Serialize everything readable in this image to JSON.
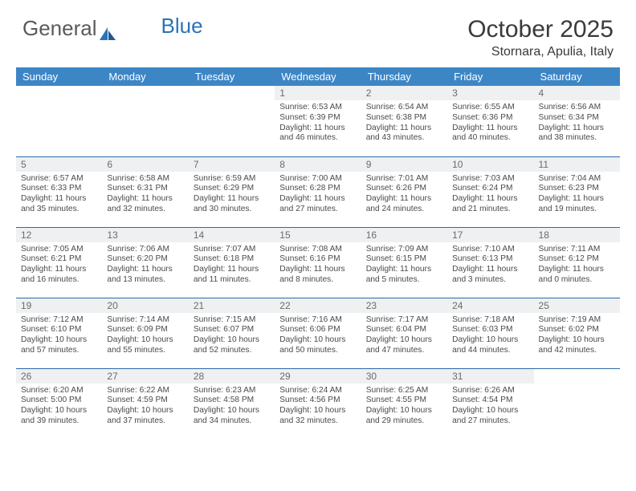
{
  "brand": {
    "part1": "General",
    "part2": "Blue"
  },
  "title": "October 2025",
  "location": "Stornara, Apulia, Italy",
  "colors": {
    "header_bg": "#3d86c6",
    "header_text": "#ffffff",
    "row_divider": "#2b6aa8",
    "daynum_bg": "#eef0f1",
    "daynum_text": "#6b6b6b",
    "body_text": "#4a4a4a",
    "logo_gray": "#5a5a5a",
    "logo_blue": "#2b73b8"
  },
  "weekdays": [
    "Sunday",
    "Monday",
    "Tuesday",
    "Wednesday",
    "Thursday",
    "Friday",
    "Saturday"
  ],
  "weeks": [
    [
      {
        "n": "",
        "sr": "",
        "ss": "",
        "dl": ""
      },
      {
        "n": "",
        "sr": "",
        "ss": "",
        "dl": ""
      },
      {
        "n": "",
        "sr": "",
        "ss": "",
        "dl": ""
      },
      {
        "n": "1",
        "sr": "Sunrise: 6:53 AM",
        "ss": "Sunset: 6:39 PM",
        "dl": "Daylight: 11 hours and 46 minutes."
      },
      {
        "n": "2",
        "sr": "Sunrise: 6:54 AM",
        "ss": "Sunset: 6:38 PM",
        "dl": "Daylight: 11 hours and 43 minutes."
      },
      {
        "n": "3",
        "sr": "Sunrise: 6:55 AM",
        "ss": "Sunset: 6:36 PM",
        "dl": "Daylight: 11 hours and 40 minutes."
      },
      {
        "n": "4",
        "sr": "Sunrise: 6:56 AM",
        "ss": "Sunset: 6:34 PM",
        "dl": "Daylight: 11 hours and 38 minutes."
      }
    ],
    [
      {
        "n": "5",
        "sr": "Sunrise: 6:57 AM",
        "ss": "Sunset: 6:33 PM",
        "dl": "Daylight: 11 hours and 35 minutes."
      },
      {
        "n": "6",
        "sr": "Sunrise: 6:58 AM",
        "ss": "Sunset: 6:31 PM",
        "dl": "Daylight: 11 hours and 32 minutes."
      },
      {
        "n": "7",
        "sr": "Sunrise: 6:59 AM",
        "ss": "Sunset: 6:29 PM",
        "dl": "Daylight: 11 hours and 30 minutes."
      },
      {
        "n": "8",
        "sr": "Sunrise: 7:00 AM",
        "ss": "Sunset: 6:28 PM",
        "dl": "Daylight: 11 hours and 27 minutes."
      },
      {
        "n": "9",
        "sr": "Sunrise: 7:01 AM",
        "ss": "Sunset: 6:26 PM",
        "dl": "Daylight: 11 hours and 24 minutes."
      },
      {
        "n": "10",
        "sr": "Sunrise: 7:03 AM",
        "ss": "Sunset: 6:24 PM",
        "dl": "Daylight: 11 hours and 21 minutes."
      },
      {
        "n": "11",
        "sr": "Sunrise: 7:04 AM",
        "ss": "Sunset: 6:23 PM",
        "dl": "Daylight: 11 hours and 19 minutes."
      }
    ],
    [
      {
        "n": "12",
        "sr": "Sunrise: 7:05 AM",
        "ss": "Sunset: 6:21 PM",
        "dl": "Daylight: 11 hours and 16 minutes."
      },
      {
        "n": "13",
        "sr": "Sunrise: 7:06 AM",
        "ss": "Sunset: 6:20 PM",
        "dl": "Daylight: 11 hours and 13 minutes."
      },
      {
        "n": "14",
        "sr": "Sunrise: 7:07 AM",
        "ss": "Sunset: 6:18 PM",
        "dl": "Daylight: 11 hours and 11 minutes."
      },
      {
        "n": "15",
        "sr": "Sunrise: 7:08 AM",
        "ss": "Sunset: 6:16 PM",
        "dl": "Daylight: 11 hours and 8 minutes."
      },
      {
        "n": "16",
        "sr": "Sunrise: 7:09 AM",
        "ss": "Sunset: 6:15 PM",
        "dl": "Daylight: 11 hours and 5 minutes."
      },
      {
        "n": "17",
        "sr": "Sunrise: 7:10 AM",
        "ss": "Sunset: 6:13 PM",
        "dl": "Daylight: 11 hours and 3 minutes."
      },
      {
        "n": "18",
        "sr": "Sunrise: 7:11 AM",
        "ss": "Sunset: 6:12 PM",
        "dl": "Daylight: 11 hours and 0 minutes."
      }
    ],
    [
      {
        "n": "19",
        "sr": "Sunrise: 7:12 AM",
        "ss": "Sunset: 6:10 PM",
        "dl": "Daylight: 10 hours and 57 minutes."
      },
      {
        "n": "20",
        "sr": "Sunrise: 7:14 AM",
        "ss": "Sunset: 6:09 PM",
        "dl": "Daylight: 10 hours and 55 minutes."
      },
      {
        "n": "21",
        "sr": "Sunrise: 7:15 AM",
        "ss": "Sunset: 6:07 PM",
        "dl": "Daylight: 10 hours and 52 minutes."
      },
      {
        "n": "22",
        "sr": "Sunrise: 7:16 AM",
        "ss": "Sunset: 6:06 PM",
        "dl": "Daylight: 10 hours and 50 minutes."
      },
      {
        "n": "23",
        "sr": "Sunrise: 7:17 AM",
        "ss": "Sunset: 6:04 PM",
        "dl": "Daylight: 10 hours and 47 minutes."
      },
      {
        "n": "24",
        "sr": "Sunrise: 7:18 AM",
        "ss": "Sunset: 6:03 PM",
        "dl": "Daylight: 10 hours and 44 minutes."
      },
      {
        "n": "25",
        "sr": "Sunrise: 7:19 AM",
        "ss": "Sunset: 6:02 PM",
        "dl": "Daylight: 10 hours and 42 minutes."
      }
    ],
    [
      {
        "n": "26",
        "sr": "Sunrise: 6:20 AM",
        "ss": "Sunset: 5:00 PM",
        "dl": "Daylight: 10 hours and 39 minutes."
      },
      {
        "n": "27",
        "sr": "Sunrise: 6:22 AM",
        "ss": "Sunset: 4:59 PM",
        "dl": "Daylight: 10 hours and 37 minutes."
      },
      {
        "n": "28",
        "sr": "Sunrise: 6:23 AM",
        "ss": "Sunset: 4:58 PM",
        "dl": "Daylight: 10 hours and 34 minutes."
      },
      {
        "n": "29",
        "sr": "Sunrise: 6:24 AM",
        "ss": "Sunset: 4:56 PM",
        "dl": "Daylight: 10 hours and 32 minutes."
      },
      {
        "n": "30",
        "sr": "Sunrise: 6:25 AM",
        "ss": "Sunset: 4:55 PM",
        "dl": "Daylight: 10 hours and 29 minutes."
      },
      {
        "n": "31",
        "sr": "Sunrise: 6:26 AM",
        "ss": "Sunset: 4:54 PM",
        "dl": "Daylight: 10 hours and 27 minutes."
      },
      {
        "n": "",
        "sr": "",
        "ss": "",
        "dl": ""
      }
    ]
  ]
}
